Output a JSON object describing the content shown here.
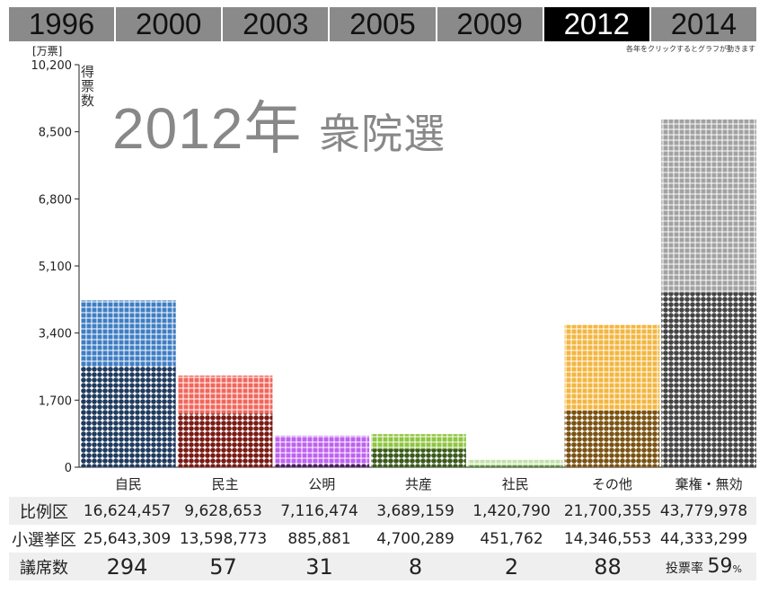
{
  "years": [
    "1996",
    "2000",
    "2003",
    "2005",
    "2009",
    "2012",
    "2014"
  ],
  "active_year": "2012",
  "hint": "各年をクリックするとグラフが動きます",
  "unit": "[万票]",
  "ylabel": "得票数",
  "title": {
    "year": "2012年",
    "kind": "衆院選"
  },
  "colors": {
    "自民": "#3f7ec4",
    "民主": "#f0675c",
    "公明": "#be62f0",
    "共産": "#8ec641",
    "社民": "#c2e2a8",
    "その他": "#f2b640",
    "棄権・無効": "#a2a2a2"
  },
  "chart_data": {
    "type": "bar",
    "title": "2012年 衆院選",
    "ylabel": "得票数",
    "yunit": "[万票]",
    "ylim": [
      0,
      10200
    ],
    "yticks": [
      0,
      1700,
      3400,
      5100,
      6800,
      8500,
      10200
    ],
    "ytick_labels": [
      "0",
      "1,700",
      "3,400",
      "5,100",
      "6,800",
      "8,500",
      "10,200"
    ],
    "categories": [
      "自民",
      "民主",
      "公明",
      "共産",
      "社民",
      "その他",
      "棄権・無効"
    ],
    "series": [
      {
        "name": "小選挙区",
        "values": [
          2564.3309,
          1359.8773,
          88.5881,
          470.0289,
          45.1762,
          1434.6553,
          4433.3299
        ]
      },
      {
        "name": "比例区",
        "values": [
          1662.4457,
          962.8653,
          711.6474,
          368.9159,
          142.079,
          2170.0355,
          4377.9978
        ]
      }
    ],
    "stacked": true,
    "legend": "none"
  },
  "table": {
    "rows": [
      {
        "label": "比例区",
        "values": [
          "16,624,457",
          "9,628,653",
          "7,116,474",
          "3,689,159",
          "1,420,790",
          "21,700,355",
          "43,779,978"
        ]
      },
      {
        "label": "小選挙区",
        "values": [
          "25,643,309",
          "13,598,773",
          "885,881",
          "4,700,289",
          "451,762",
          "14,346,553",
          "44,333,299"
        ]
      }
    ],
    "seats": {
      "label": "議席数",
      "values": [
        "294",
        "57",
        "31",
        "8",
        "2",
        "88"
      ]
    },
    "turnout": {
      "label": "投票率",
      "value": "59",
      "unit": "%"
    }
  }
}
